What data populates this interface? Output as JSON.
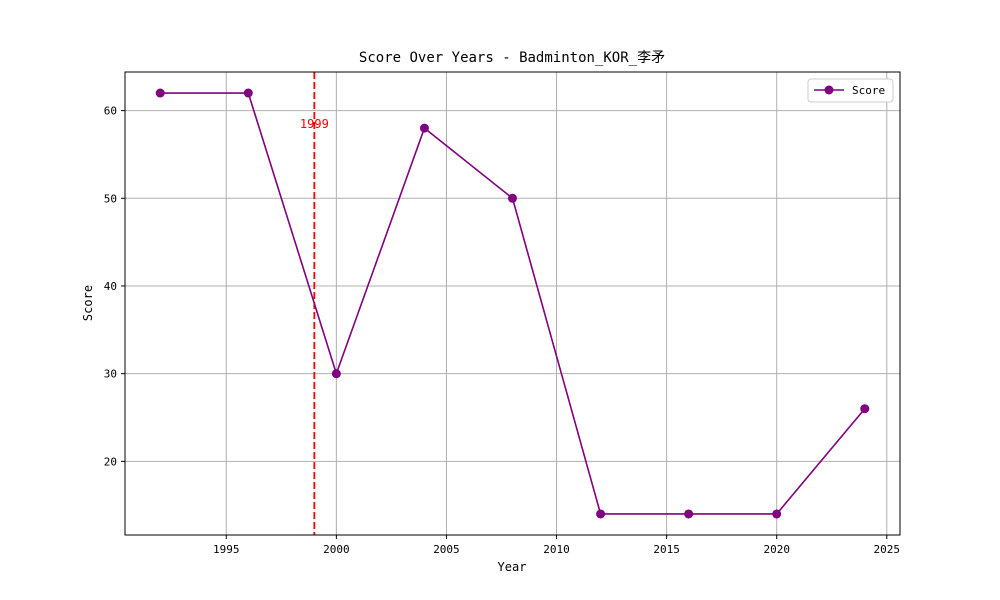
{
  "chart_data": {
    "type": "line",
    "title": "Score Over Years - Badminton_KOR_李矛",
    "xlabel": "Year",
    "ylabel": "Score",
    "x": [
      1992,
      1996,
      2000,
      2004,
      2008,
      2012,
      2016,
      2020,
      2024
    ],
    "series": [
      {
        "name": "Score",
        "values": [
          62,
          62,
          30,
          58,
          50,
          14,
          14,
          14,
          26
        ],
        "color": "#800080"
      }
    ],
    "xlim": [
      1990.4,
      2025.6
    ],
    "ylim": [
      11.6,
      64.4
    ],
    "xticks": [
      1995,
      2000,
      2005,
      2010,
      2015,
      2020,
      2025
    ],
    "yticks": [
      20,
      30,
      40,
      50,
      60
    ],
    "grid": true,
    "legend": "top-right",
    "vline": {
      "x": 1999,
      "label": "1999",
      "color": "#ff0000",
      "style": "dashed"
    }
  }
}
